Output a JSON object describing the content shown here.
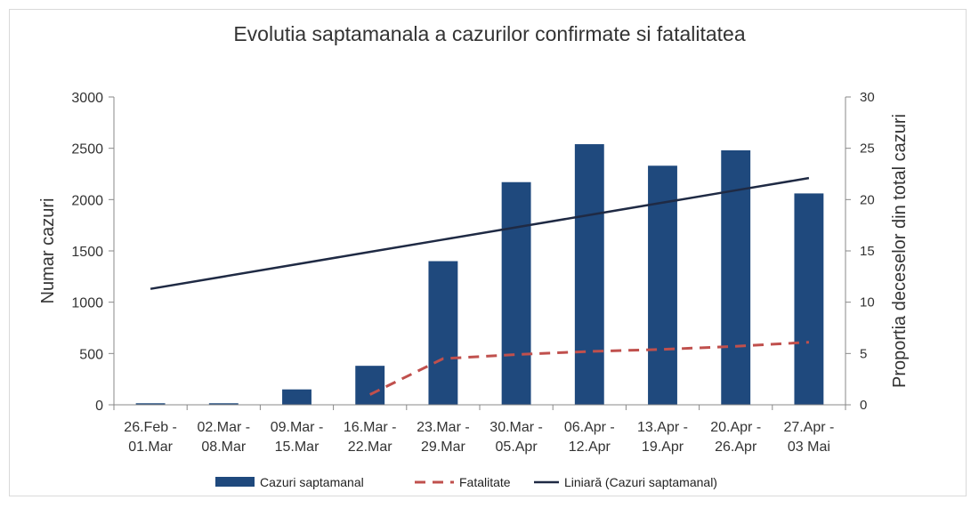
{
  "chart_data": {
    "type": "bar",
    "title": "Evolutia saptamanala a cazurilor confirmate si fatalitatea",
    "ylabel": "Numar cazuri",
    "ylabel_right": "Proportia deceselor din total cazuri",
    "xlabel": "",
    "ylim": [
      0,
      3000
    ],
    "ylim_right": [
      0,
      30
    ],
    "yticks": [
      "0",
      "500",
      "1000",
      "1500",
      "2000",
      "2500",
      "3000"
    ],
    "yticks_right": [
      "0",
      "5",
      "10",
      "15",
      "20",
      "25",
      "30"
    ],
    "categories": [
      [
        "26.Feb -",
        "01.Mar"
      ],
      [
        "02.Mar -",
        "08.Mar"
      ],
      [
        "09.Mar -",
        "15.Mar"
      ],
      [
        "16.Mar -",
        "22.Mar"
      ],
      [
        "23.Mar -",
        "29.Mar"
      ],
      [
        "30.Mar -",
        "05.Apr"
      ],
      [
        "06.Apr -",
        "12.Apr"
      ],
      [
        "13.Apr -",
        "19.Apr"
      ],
      [
        "20.Apr -",
        "26.Apr"
      ],
      [
        "27.Apr -",
        "03 Mai"
      ]
    ],
    "series": [
      {
        "name": "Cazuri saptamanal",
        "kind": "bar",
        "axis": "left",
        "color": "#1f497d",
        "values": [
          15,
          15,
          150,
          380,
          1400,
          2170,
          2540,
          2330,
          2480,
          2060
        ]
      },
      {
        "name": "Fatalitate",
        "kind": "line-dashed",
        "axis": "right",
        "color": "#c0504d",
        "values": [
          null,
          null,
          null,
          1.0,
          4.5,
          4.9,
          5.2,
          5.4,
          5.7,
          6.1
        ]
      },
      {
        "name": "Liniară (Cazuri saptamanal)",
        "kind": "trendline",
        "axis": "left",
        "color": "#1f2a44",
        "values": [
          1130,
          1250,
          1370,
          1490,
          1610,
          1730,
          1850,
          1970,
          2090,
          2210
        ]
      }
    ],
    "legend_position": "bottom"
  }
}
